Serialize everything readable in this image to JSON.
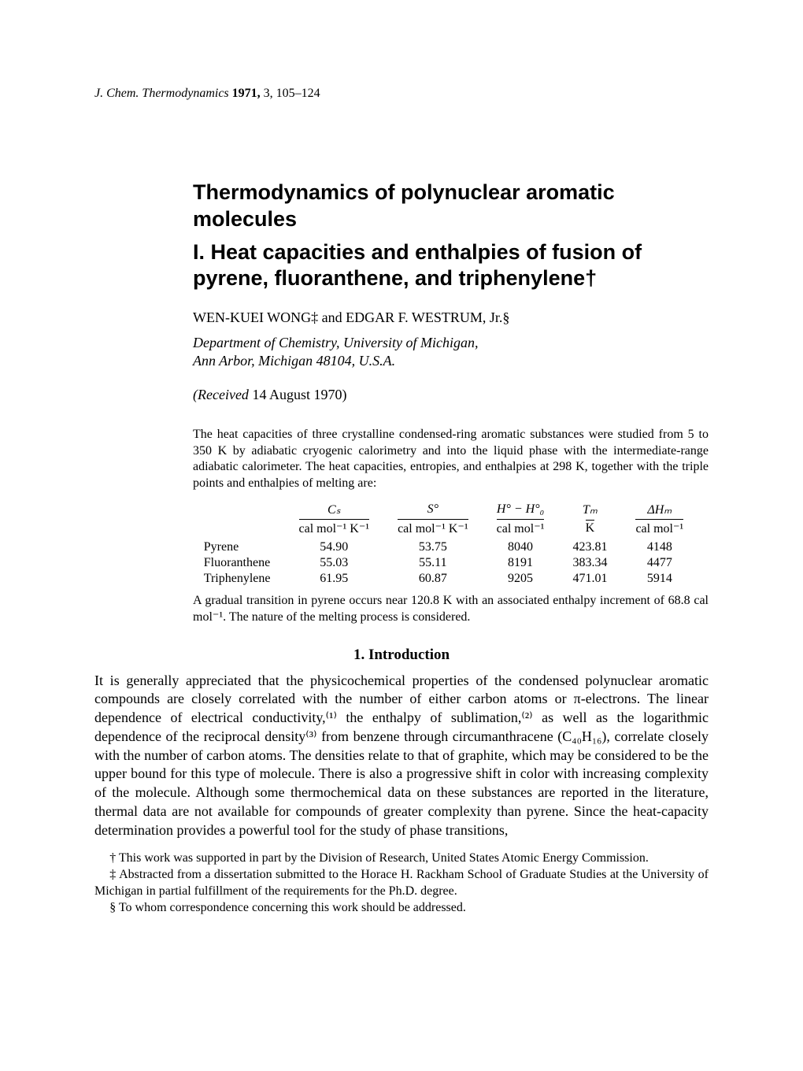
{
  "journal": {
    "name": "J. Chem. Thermodynamics",
    "year": "1971,",
    "volume": "3,",
    "pages": "105–124"
  },
  "title": "Thermodynamics of polynuclear aromatic molecules",
  "subtitle": "I. Heat capacities and enthalpies of fusion of pyrene, fluoranthene, and triphenylene†",
  "authors": "WEN-KUEI WONG‡ and EDGAR F. WESTRUM, Jr.§",
  "affiliation_line1": "Department of Chemistry, University of Michigan,",
  "affiliation_line2": "Ann Arbor, Michigan 48104, U.S.A.",
  "received_label": "(Received ",
  "received_date": "14 August 1970)",
  "abstract_intro": "The heat capacities of three crystalline condensed-ring aromatic substances were studied from 5 to 350 K by adiabatic cryogenic calorimetry and into the liquid phase with the intermediate-range adiabatic calorimeter. The heat capacities, entropies, and enthalpies at 298 K, together with the triple points and enthalpies of melting are:",
  "table": {
    "headers": {
      "c1": "Cₛ",
      "c2": "S°",
      "c3": "H° − H°₀",
      "c4": "Tₘ",
      "c5": "ΔHₘ"
    },
    "units": {
      "c1": "cal mol⁻¹ K⁻¹",
      "c2": "cal mol⁻¹ K⁻¹",
      "c3": "cal mol⁻¹",
      "c4": "K",
      "c5": "cal mol⁻¹"
    },
    "rows": [
      {
        "name": "Pyrene",
        "c1": "54.90",
        "c2": "53.75",
        "c3": "8040",
        "c4": "423.81",
        "c5": "4148"
      },
      {
        "name": "Fluoranthene",
        "c1": "55.03",
        "c2": "55.11",
        "c3": "8191",
        "c4": "383.34",
        "c5": "4477"
      },
      {
        "name": "Triphenylene",
        "c1": "61.95",
        "c2": "60.87",
        "c3": "9205",
        "c4": "471.01",
        "c5": "5914"
      }
    ]
  },
  "abstract_tail": "A gradual transition in pyrene occurs near 120.8 K with an associated enthalpy increment of 68.8 cal mol⁻¹. The nature of the melting process is considered.",
  "section_heading": "1. Introduction",
  "body": "It is generally appreciated that the physicochemical properties of the condensed polynuclear aromatic compounds are closely correlated with the number of either carbon atoms or π-electrons. The linear dependence of electrical conductivity,⁽¹⁾ the enthalpy of sublimation,⁽²⁾ as well as the logarithmic dependence of the reciprocal density⁽³⁾ from benzene through circumanthracene (C₄₀H₁₆), correlate closely with the number of carbon atoms. The densities relate to that of graphite, which may be considered to be the upper bound for this type of molecule. There is also a progressive shift in color with increasing complexity of the molecule. Although some thermochemical data on these substances are reported in the literature, thermal data are not available for compounds of greater complexity than pyrene. Since the heat-capacity determination provides a powerful tool for the study of phase transitions,",
  "footnotes": {
    "f1": "† This work was supported in part by the Division of Research, United States Atomic Energy Commission.",
    "f2": "‡ Abstracted from a dissertation submitted to the Horace H. Rackham School of Graduate Studies at the University of Michigan in partial fulfillment of the requirements for the Ph.D. degree.",
    "f3": "§ To whom correspondence concerning this work should be addressed."
  }
}
